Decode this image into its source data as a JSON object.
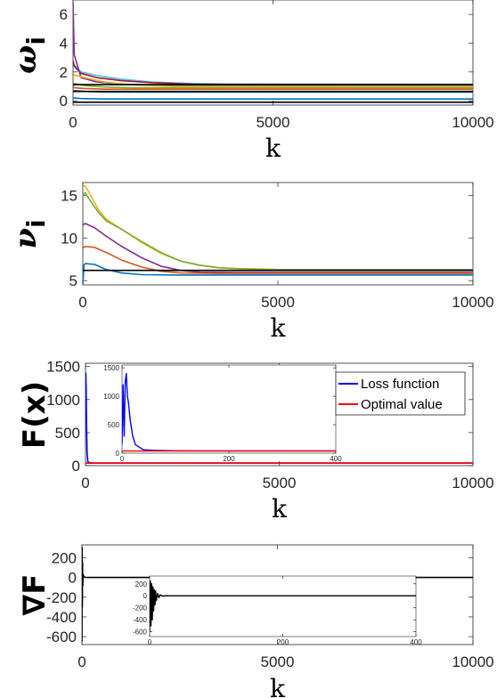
{
  "chart_data": [
    {
      "type": "line",
      "id": "omega",
      "xlabel": "k",
      "ylabel_main": "ω",
      "ylabel_sub": "i",
      "xlim": [
        0,
        10000
      ],
      "ylim": [
        -0.3,
        7
      ],
      "xticks": [
        0,
        5000,
        10000
      ],
      "xtick_labels": [
        "0",
        "5000",
        "10000"
      ],
      "yticks": [
        0,
        2,
        4,
        6
      ],
      "ytick_labels": [
        "0",
        "2",
        "4",
        "6"
      ],
      "series": [
        {
          "color": "#4DBEEE",
          "x": [
            0,
            30,
            200,
            600,
            1200,
            2000,
            3000,
            4000,
            10000
          ],
          "y": [
            2.2,
            2.5,
            2.0,
            1.75,
            1.5,
            1.3,
            1.2,
            1.15,
            1.15
          ]
        },
        {
          "color": "#A2142F",
          "x": [
            0,
            30,
            200,
            600,
            1200,
            2000,
            3000,
            10000
          ],
          "y": [
            2.8,
            2.4,
            1.9,
            1.6,
            1.4,
            1.25,
            1.15,
            1.1
          ]
        },
        {
          "color": "#7E2F8E",
          "x": [
            0,
            30,
            200,
            600,
            1200,
            2500,
            10000
          ],
          "y": [
            6.8,
            3.2,
            1.6,
            1.3,
            1.15,
            1.05,
            1.05
          ]
        },
        {
          "color": "#EDB120",
          "x": [
            0,
            30,
            300,
            800,
            1500,
            2500,
            10000
          ],
          "y": [
            1.6,
            1.8,
            1.6,
            1.3,
            1.1,
            1.0,
            1.0
          ]
        },
        {
          "color": "#77AC30",
          "x": [
            0,
            30,
            300,
            800,
            1500,
            2500,
            10000
          ],
          "y": [
            0.9,
            1.2,
            1.05,
            0.95,
            0.9,
            0.9,
            0.9
          ]
        },
        {
          "color": "#D95319",
          "x": [
            0,
            30,
            300,
            800,
            1500,
            10000
          ],
          "y": [
            1.0,
            0.9,
            0.85,
            0.8,
            0.8,
            0.8
          ]
        },
        {
          "color": "#0072BD",
          "x": [
            0,
            30,
            300,
            800,
            1500,
            10000
          ],
          "y": [
            0.6,
            0.7,
            0.65,
            0.6,
            0.6,
            0.6
          ]
        },
        {
          "color": "#0072BD",
          "x": [
            0,
            200,
            800,
            2000,
            10000
          ],
          "y": [
            0.2,
            0.15,
            0.12,
            0.12,
            0.12
          ]
        },
        {
          "color": "#000000",
          "x": [
            0,
            10000
          ],
          "y": [
            1.12,
            1.12
          ]
        },
        {
          "color": "#000000",
          "x": [
            0,
            10000
          ],
          "y": [
            0.65,
            0.65
          ]
        },
        {
          "color": "#000000",
          "x": [
            0,
            10000
          ],
          "y": [
            -0.1,
            -0.1
          ]
        }
      ]
    },
    {
      "type": "line",
      "id": "nu",
      "xlabel": "k",
      "ylabel_main": "ν",
      "ylabel_sub": "i",
      "xlim": [
        0,
        10000
      ],
      "ylim": [
        4.5,
        16.5
      ],
      "xticks": [
        0,
        5000,
        10000
      ],
      "xtick_labels": [
        "0",
        "5000",
        "10000"
      ],
      "yticks": [
        5,
        10,
        15
      ],
      "ytick_labels": [
        "5",
        "10",
        "15"
      ],
      "series": [
        {
          "color": "#EDB120",
          "x": [
            0,
            60,
            200,
            400,
            600,
            1000,
            1500,
            2000,
            2500,
            3000,
            3500,
            4000,
            5000,
            10000
          ],
          "y": [
            16.2,
            16.1,
            15.0,
            13.3,
            12.2,
            11.0,
            9.5,
            8.2,
            7.3,
            6.8,
            6.5,
            6.4,
            6.3,
            6.3
          ]
        },
        {
          "color": "#77AC30",
          "x": [
            0,
            60,
            200,
            400,
            600,
            1000,
            1500,
            2000,
            2500,
            3000,
            3500,
            4000,
            5000,
            10000
          ],
          "y": [
            15.0,
            15.3,
            14.3,
            13.0,
            12.0,
            11.0,
            9.6,
            8.3,
            7.3,
            6.8,
            6.5,
            6.4,
            6.3,
            6.3
          ]
        },
        {
          "color": "#7E2F8E",
          "x": [
            0,
            60,
            300,
            600,
            1000,
            1500,
            2000,
            2500,
            3000,
            4000,
            10000
          ],
          "y": [
            11.5,
            11.7,
            11.2,
            10.2,
            9.0,
            7.7,
            6.7,
            6.2,
            6.0,
            5.95,
            5.95
          ]
        },
        {
          "color": "#D95319",
          "x": [
            0,
            60,
            300,
            600,
            1000,
            1500,
            2000,
            2500,
            3500,
            10000
          ],
          "y": [
            8.8,
            9.0,
            8.9,
            8.3,
            7.4,
            6.6,
            6.1,
            5.9,
            5.85,
            5.85
          ]
        },
        {
          "color": "#0072BD",
          "x": [
            0,
            30,
            60,
            300,
            600,
            1000,
            1500,
            2500,
            10000
          ],
          "y": [
            4.5,
            6.8,
            7.0,
            6.9,
            6.3,
            5.9,
            5.7,
            5.65,
            5.65
          ]
        },
        {
          "color": "#000000",
          "x": [
            0,
            10000
          ],
          "y": [
            6.2,
            6.2
          ]
        }
      ]
    },
    {
      "type": "line",
      "id": "loss",
      "xlabel": "k",
      "ylabel_main": "F(x)",
      "xlim": [
        0,
        10000
      ],
      "ylim": [
        0,
        1550
      ],
      "xticks": [
        0,
        5000,
        10000
      ],
      "xtick_labels": [
        "0",
        "5000",
        "10000"
      ],
      "yticks": [
        0,
        500,
        1000,
        1500
      ],
      "ytick_labels": [
        "0",
        "500",
        "1000",
        "1500"
      ],
      "legend": [
        "Loss function",
        "Optimal value"
      ],
      "legend_position": "top-right",
      "series": [
        {
          "name": "Loss function",
          "color": "#0000FF",
          "x": [
            0,
            8,
            15,
            25,
            40,
            60,
            100,
            200,
            400,
            10000
          ],
          "y": [
            600,
            1400,
            1200,
            700,
            200,
            60,
            45,
            40,
            40,
            40
          ]
        },
        {
          "name": "Optimal value",
          "color": "#FF0000",
          "x": [
            0,
            10000
          ],
          "y": [
            38,
            38
          ]
        }
      ],
      "inset": {
        "xlim": [
          0,
          400
        ],
        "ylim": [
          0,
          1550
        ],
        "xticks": [
          0,
          200,
          400
        ],
        "xtick_labels": [
          "0",
          "200",
          "400"
        ],
        "yticks": [
          0,
          500,
          1000,
          1500
        ],
        "ytick_labels": [
          "0",
          "500",
          "1000",
          "1500"
        ],
        "series": [
          {
            "color": "#0000FF",
            "x": [
              0,
              2,
              4,
              6,
              8,
              10,
              12,
              15,
              20,
              25,
              40,
              60,
              80,
              100,
              150,
              200,
              250,
              300,
              350,
              400
            ],
            "y": [
              150,
              1200,
              300,
              1250,
              1400,
              1000,
              900,
              600,
              300,
              150,
              60,
              50,
              45,
              42,
              40,
              40,
              40,
              40,
              40,
              40
            ]
          },
          {
            "color": "#FF0000",
            "x": [
              0,
              400
            ],
            "y": [
              38,
              38
            ]
          }
        ]
      }
    },
    {
      "type": "line",
      "id": "grad",
      "xlabel": "k",
      "ylabel_main": "∇F",
      "xlim": [
        0,
        10000
      ],
      "ylim": [
        -680,
        330
      ],
      "xticks": [
        0,
        5000,
        10000
      ],
      "xtick_labels": [
        "0",
        "5000",
        "10000"
      ],
      "yticks": [
        -600,
        -400,
        -200,
        0,
        200
      ],
      "ytick_labels": [
        "-600",
        "-400",
        "-200",
        "0",
        "200"
      ],
      "series": [
        {
          "color": "#000000",
          "x": [
            0,
            5,
            10,
            15,
            20,
            30,
            50,
            100,
            10000
          ],
          "y": [
            -650,
            300,
            -300,
            150,
            -80,
            30,
            5,
            0,
            0
          ]
        }
      ],
      "inset": {
        "xlim": [
          0,
          400
        ],
        "ylim": [
          -680,
          330
        ],
        "xticks": [
          0,
          200,
          400
        ],
        "xtick_labels": [
          "0",
          "200",
          "400"
        ],
        "yticks": [
          -600,
          -400,
          -200,
          0,
          200
        ],
        "ytick_labels": [
          "-600",
          "-400",
          "-200",
          "0",
          "200"
        ],
        "series": [
          {
            "color": "#000000",
            "x": [
              0,
              1,
              2,
              3,
              4,
              5,
              6,
              7,
              8,
              9,
              10,
              12,
              14,
              16,
              20,
              25,
              30,
              400
            ],
            "y": [
              -600,
              250,
              -500,
              200,
              -400,
              150,
              -250,
              100,
              -150,
              80,
              -80,
              40,
              -30,
              15,
              -5,
              3,
              0,
              0
            ]
          }
        ]
      }
    }
  ]
}
